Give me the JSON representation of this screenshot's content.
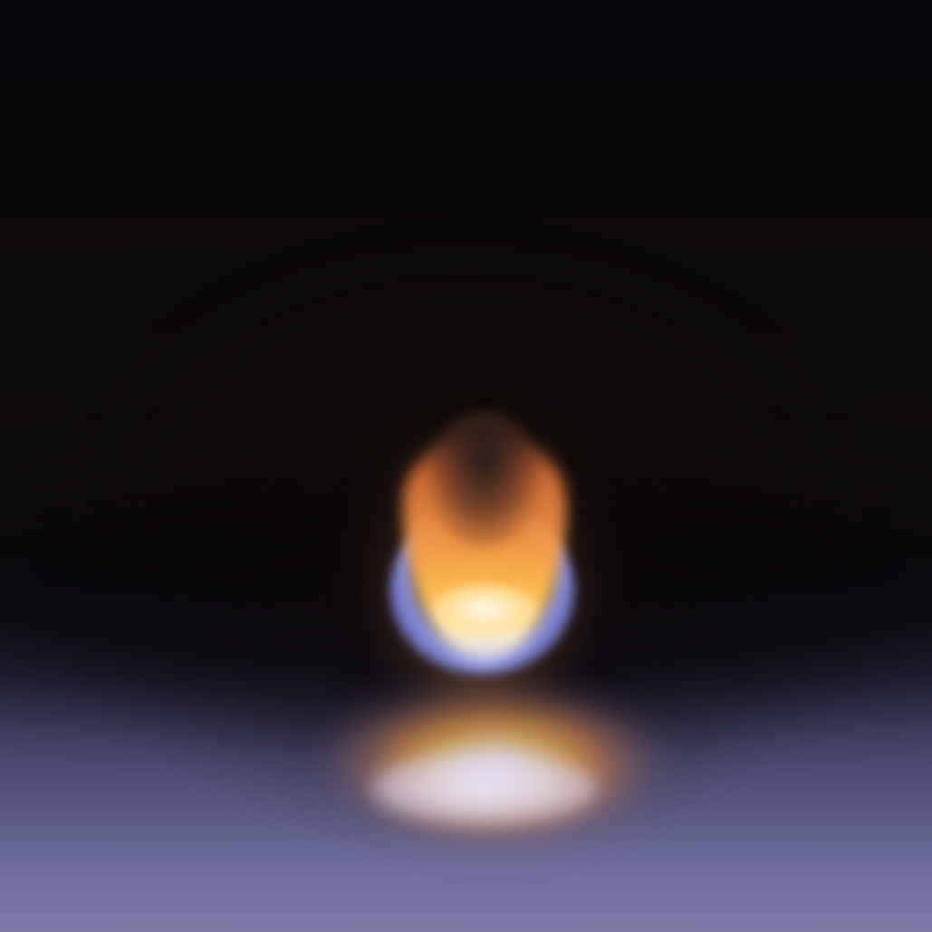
{
  "image": {
    "subject": "blurred-flame",
    "colors": {
      "background": "#07050a",
      "floor": "#7d7aa8",
      "flame_orange": "#f59646",
      "flame_core": "#fff0c8",
      "flame_edge_blue": "#9aa0fa"
    }
  }
}
